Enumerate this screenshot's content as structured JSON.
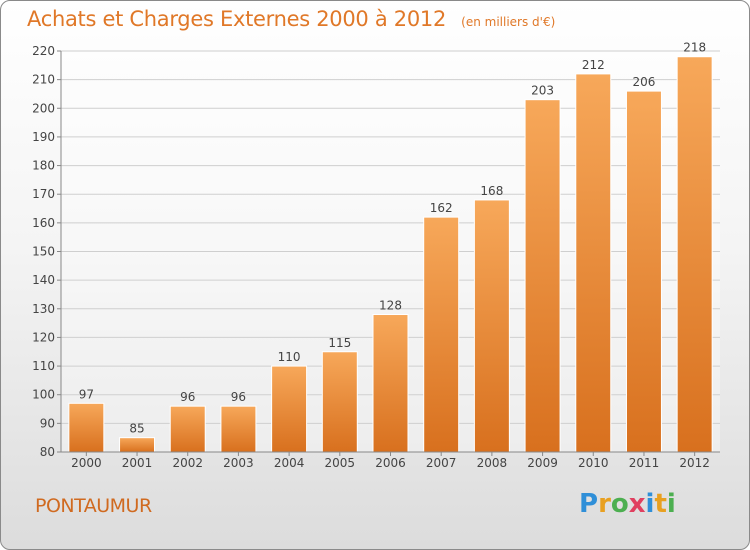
{
  "header": {
    "title": "Achats et Charges Externes 2000 à 2012",
    "subtitle": "(en milliers d'€)"
  },
  "footer": {
    "commune": "PONTAUMUR",
    "brand": "Proxiti",
    "brand_letters": [
      {
        "char": "P",
        "color": "#2f8fd8"
      },
      {
        "char": "r",
        "color": "#e8a020"
      },
      {
        "char": "o",
        "color": "#4caf50"
      },
      {
        "char": "x",
        "color": "#e04060"
      },
      {
        "char": "i",
        "color": "#2f8fd8"
      },
      {
        "char": "t",
        "color": "#e8a020"
      },
      {
        "char": "i",
        "color": "#4caf50"
      }
    ]
  },
  "chart_data": {
    "type": "bar",
    "title": "Achats et Charges Externes 2000 à 2012",
    "subtitle": "(en milliers d'€)",
    "categories": [
      "2000",
      "2001",
      "2002",
      "2003",
      "2004",
      "2005",
      "2006",
      "2007",
      "2008",
      "2009",
      "2010",
      "2011",
      "2012"
    ],
    "values": [
      97,
      85,
      96,
      96,
      110,
      115,
      128,
      162,
      168,
      203,
      212,
      206,
      218
    ],
    "xlabel": "",
    "ylabel": "",
    "ylim": [
      80,
      220
    ],
    "yticks": [
      80,
      90,
      100,
      110,
      120,
      130,
      140,
      150,
      160,
      170,
      180,
      190,
      200,
      210,
      220
    ],
    "grid": true,
    "bar_color_top": "#f7a85a",
    "bar_color_bottom": "#d8701e"
  }
}
